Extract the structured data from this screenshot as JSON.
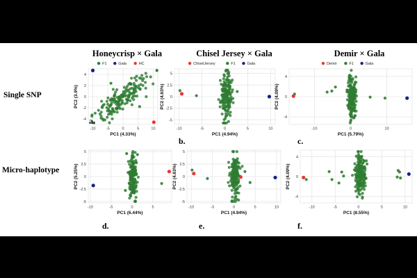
{
  "figure": {
    "column_titles": [
      "Honeycrisp × Gala",
      "Chisel Jersey × Gala",
      "Demir × Gala"
    ],
    "row_labels": [
      "Single SNP",
      "Micro-haplotype"
    ],
    "colors": {
      "background": "#000000",
      "panel": "#ffffff",
      "grid": "#e6e6e6"
    }
  },
  "chart_data": [
    {
      "type": "scatter",
      "panel": "a.",
      "xlabel": "PC1 (4.33%)",
      "ylabel": "PC2 (3.9%)",
      "xlim": [
        -11.5,
        11.5
      ],
      "ylim": [
        -5,
        5
      ],
      "xticks": [
        -10,
        -5,
        0,
        5,
        10
      ],
      "yticks": [
        -4,
        -2,
        0,
        2,
        4
      ],
      "legend": [
        {
          "name": "F1",
          "color": "#2e7d32"
        },
        {
          "name": "Gala",
          "color": "#1a237e"
        },
        {
          "name": "HC",
          "color": "#e53935"
        }
      ],
      "legend_position": "top",
      "cloud": {
        "shape": "diagonal",
        "n": 170,
        "cx": 0,
        "cy": 0,
        "sx": 4.2,
        "sy": 0.7,
        "jitter": 1.2,
        "seed": 11
      },
      "outliers": [
        [
          5.5,
          -1.8
        ],
        [
          -4,
          2.4
        ]
      ],
      "series": [
        {
          "name": "Gala",
          "color": "#1a237e",
          "points": [
            [
              -10,
              4.7
            ]
          ]
        },
        {
          "name": "HC",
          "color": "#e53935",
          "points": [
            [
              10.2,
              -4.6
            ]
          ]
        }
      ]
    },
    {
      "type": "scatter",
      "panel": "b.",
      "xlabel": "PC1 (4.94%)",
      "ylabel": "PC2 (4.63%)",
      "xlim": [
        -11,
        11
      ],
      "ylim": [
        -6,
        6
      ],
      "xticks": [
        -10,
        -5,
        0,
        5,
        10
      ],
      "yticks": [
        -5.0,
        -2.5,
        0.0,
        2.5,
        5.0
      ],
      "legend": [
        {
          "name": "ChiselJersey",
          "color": "#e53935"
        },
        {
          "name": "F1",
          "color": "#2e7d32"
        },
        {
          "name": "Gala",
          "color": "#1a237e"
        }
      ],
      "legend_position": "top",
      "cloud": {
        "shape": "column",
        "n": 170,
        "cx": 0.3,
        "cy": 0,
        "sx": 1.1,
        "sy": 2.4,
        "seed": 23
      },
      "outliers": [
        [
          -9.8,
          1.3
        ],
        [
          -6.2,
          0.2
        ],
        [
          2.7,
          1.1
        ]
      ],
      "series": [
        {
          "name": "ChiselJersey",
          "color": "#e53935",
          "points": [
            [
              -9.4,
              0.6
            ]
          ]
        },
        {
          "name": "Gala",
          "color": "#1a237e",
          "points": [
            [
              9.7,
              0.0
            ]
          ]
        }
      ]
    },
    {
      "type": "scatter",
      "panel": "c.",
      "xlabel": "PC1 (5.79%)",
      "ylabel": "PC2 (4.09%)",
      "xlim": [
        -17,
        17
      ],
      "ylim": [
        -5.5,
        5.5
      ],
      "xticks": [
        -10,
        0,
        10
      ],
      "yticks": [
        -4,
        0,
        4
      ],
      "legend": [
        {
          "name": "Demir",
          "color": "#e53935"
        },
        {
          "name": "F1",
          "color": "#2e7d32"
        },
        {
          "name": "Gala",
          "color": "#1a237e"
        }
      ],
      "legend_position": "top",
      "cloud": {
        "shape": "column",
        "n": 170,
        "cx": 0.3,
        "cy": 0,
        "sx": 1.0,
        "sy": 2.2,
        "seed": 37
      },
      "outliers": [
        [
          -15.5,
          0.5
        ],
        [
          -6.5,
          0.9
        ],
        [
          -5.2,
          1.1
        ],
        [
          -4.2,
          1.9
        ],
        [
          5.4,
          -0.1
        ],
        [
          9.5,
          -0.3
        ]
      ],
      "series": [
        {
          "name": "Demir",
          "color": "#e53935",
          "points": [
            [
              -15.8,
              0.1
            ]
          ]
        },
        {
          "name": "Gala",
          "color": "#1a237e",
          "points": [
            [
              15.6,
              -0.3
            ]
          ]
        }
      ]
    },
    {
      "type": "scatter",
      "panel": "d.",
      "xlabel": "PC1 (6.44%)",
      "ylabel": "PC2 (5.25%)",
      "xlim": [
        -10.5,
        9.5
      ],
      "ylim": [
        -5.3,
        5.3
      ],
      "xticks": [
        -10,
        -5,
        0,
        5
      ],
      "yticks": [
        -5.0,
        -2.5,
        0.0,
        2.5,
        5.0
      ],
      "legend": [],
      "legend_position": "none",
      "cloud": {
        "shape": "column",
        "n": 160,
        "cx": 0.2,
        "cy": 0,
        "sx": 0.9,
        "sy": 2.1,
        "seed": 41
      },
      "outliers": [
        [
          -1.3,
          4.6
        ],
        [
          1.3,
          4.4
        ],
        [
          -1.6,
          -2.8
        ],
        [
          7.1,
          -1.4
        ]
      ],
      "series": [
        {
          "name": "Gala",
          "color": "#1a237e",
          "points": [
            [
              -9.3,
              -1.8
            ]
          ]
        },
        {
          "name": "HC",
          "color": "#e53935",
          "points": [
            [
              8.9,
              1.0
            ]
          ]
        }
      ]
    },
    {
      "type": "scatter",
      "panel": "e.",
      "xlabel": "PC1 (4.94%)",
      "ylabel": "PC2 (4.63%)",
      "xlim": [
        -11,
        11
      ],
      "ylim": [
        -5.3,
        5.3
      ],
      "xticks": [
        -10,
        -5,
        0,
        5,
        10
      ],
      "yticks": [
        -5.0,
        -2.5,
        0.0,
        2.5,
        5.0
      ],
      "legend": [],
      "legend_position": "none",
      "cloud": {
        "shape": "column",
        "n": 170,
        "cx": 0.3,
        "cy": 0,
        "sx": 1.1,
        "sy": 2.3,
        "seed": 53
      },
      "outliers": [
        [
          -9.8,
          1.3
        ],
        [
          -6.2,
          -0.4
        ],
        [
          3.8,
          -1.2
        ],
        [
          2.6,
          1.0
        ]
      ],
      "series": [
        {
          "name": "ChiselJersey",
          "color": "#e53935",
          "points": [
            [
              -9.4,
              0.6
            ],
            [
              1.6,
              -0.1
            ]
          ]
        },
        {
          "name": "Gala",
          "color": "#1a237e",
          "points": [
            [
              9.7,
              -0.2
            ]
          ]
        }
      ]
    },
    {
      "type": "scatter",
      "panel": "f.",
      "xlabel": "PC1 (8.55%)",
      "ylabel": "PC2 (4.09%)",
      "xlim": [
        -12.5,
        11.5
      ],
      "ylim": [
        -5.3,
        5.3
      ],
      "xticks": [
        -10,
        -5,
        0,
        5,
        10
      ],
      "yticks": [
        -4,
        0,
        4
      ],
      "legend": [],
      "legend_position": "none",
      "cloud": {
        "shape": "column",
        "n": 170,
        "cx": 0.3,
        "cy": 0,
        "sx": 1.0,
        "sy": 2.0,
        "seed": 67
      },
      "outliers": [
        [
          -11.2,
          -0.6
        ],
        [
          -6.3,
          1.0
        ],
        [
          -5.7,
          -0.6
        ],
        [
          -4.2,
          -1.3
        ],
        [
          -3.6,
          0.9
        ],
        [
          -3.2,
          0.1
        ],
        [
          8.5,
          1.2
        ],
        [
          8.8,
          0.9
        ],
        [
          9.0,
          -0.3
        ],
        [
          8.3,
          -0.1
        ]
      ],
      "series": [
        {
          "name": "Demir",
          "color": "#e53935",
          "points": [
            [
              -11.8,
              -0.2
            ]
          ]
        },
        {
          "name": "Gala",
          "color": "#1a237e",
          "points": [
            [
              10.8,
              0.5
            ]
          ]
        }
      ]
    }
  ]
}
